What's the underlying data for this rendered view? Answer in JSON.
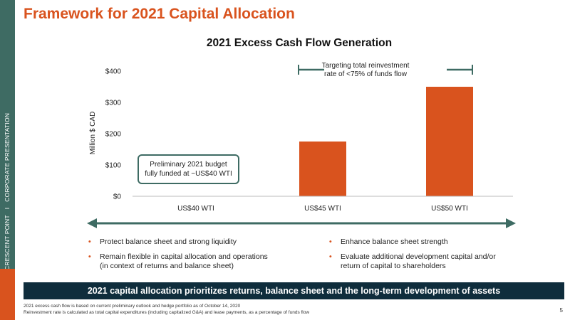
{
  "sidebar": {
    "company": "CRESCENT POINT",
    "separator": "I",
    "section": "CORPORATE PRESENTATION",
    "color": "#3e6b63",
    "accent_color": "#d9531e"
  },
  "page_title": "Framework for 2021 Capital Allocation",
  "chart_data": {
    "type": "bar",
    "title": "2021 Excess Cash Flow Generation",
    "ylabel": "Million $ CAD",
    "xlabel": "",
    "categories": [
      "US$40 WTI",
      "US$45 WTI",
      "US$50 WTI"
    ],
    "values": [
      0,
      175,
      350
    ],
    "ylim": [
      0,
      400
    ],
    "yticks": [
      0,
      100,
      200,
      300,
      400
    ],
    "ytick_labels": [
      "$0",
      "$100",
      "$200",
      "$300",
      "$400"
    ],
    "grid": false,
    "bar_color": "#d9531e",
    "annotations": {
      "budget_note": [
        "Preliminary 2021 budget",
        "fully funded at ~US$40 WTI"
      ],
      "target_note": [
        "Targeting total reinvestment",
        "rate of <75% of funds flow"
      ]
    }
  },
  "bullets_left": [
    [
      "Protect balance sheet and strong liquidity"
    ],
    [
      "Remain flexible in capital allocation and operations",
      "(in context of returns and balance sheet)"
    ]
  ],
  "bullets_right": [
    [
      "Enhance balance sheet strength"
    ],
    [
      "Evaluate additional development capital and/or",
      "return of capital to shareholders"
    ]
  ],
  "banner": "2021 capital allocation prioritizes returns, balance sheet and the long-term development of assets",
  "footnotes": [
    "2021 excess cash flow is based on current preliminary outlook and hedge portfolio as of October 14, 2020",
    "Reinvestment rate is calculated as total capital expenditures (including capitalized G&A) and lease payments, as a percentage of funds flow"
  ],
  "page_number": "5",
  "colors": {
    "accent": "#d9531e",
    "teal": "#3e6b63",
    "navy": "#0f2d3c"
  }
}
